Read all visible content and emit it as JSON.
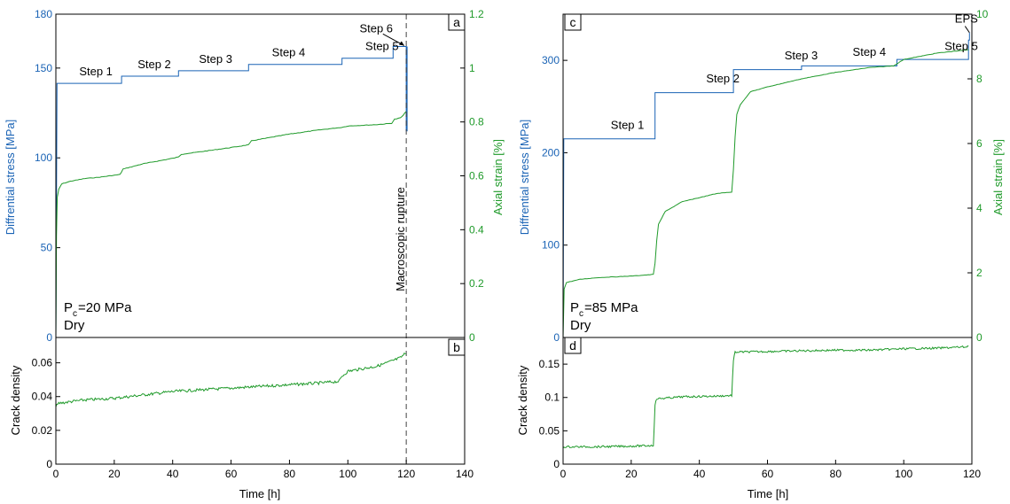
{
  "colors": {
    "stress": "#1a63b5",
    "strain": "#1f9a2a",
    "axis": "#000000",
    "rupture": "#444444"
  },
  "chart_data": [
    {
      "panel": "a",
      "type": "line",
      "xlim": [
        0,
        140
      ],
      "ylim_left": [
        0,
        180
      ],
      "ylim_right": [
        0,
        1.2
      ],
      "ylabel_left": "Diffrential stress [MPa]",
      "ylabel_right": "Axial strain [%]",
      "yticks_left": [
        "0",
        "50",
        "100",
        "150",
        "180"
      ],
      "yticks_right": [
        "0",
        "0.2",
        "0.4",
        "0.6",
        "0.8",
        "1",
        "1.2"
      ],
      "series": [
        {
          "axis": "left",
          "x": [
            0,
            0.4,
            22.5,
            22.5,
            42,
            42,
            66,
            66,
            98,
            98,
            115.5,
            115.5,
            120,
            120,
            120.3,
            120.3
          ],
          "y": [
            0,
            141.5,
            141.5,
            145.5,
            145.5,
            148.5,
            148.5,
            152,
            152,
            155.5,
            155.5,
            162,
            162,
            115,
            115,
            162
          ]
        },
        {
          "axis": "right",
          "x": [
            0,
            0.2,
            0.5,
            1,
            2,
            5,
            10,
            15,
            22,
            22.5,
            23,
            30,
            40,
            42,
            43,
            50,
            60,
            66,
            67,
            80,
            90,
            98,
            100,
            110,
            115,
            116,
            118,
            119,
            120
          ],
          "y": [
            0,
            0.38,
            0.52,
            0.55,
            0.57,
            0.58,
            0.59,
            0.595,
            0.605,
            0.615,
            0.625,
            0.645,
            0.665,
            0.67,
            0.68,
            0.69,
            0.705,
            0.715,
            0.73,
            0.755,
            0.77,
            0.78,
            0.785,
            0.79,
            0.795,
            0.81,
            0.815,
            0.825,
            0.84
          ]
        }
      ],
      "annotations": {
        "steps": [
          {
            "label": "Step 1",
            "x": 8,
            "y": 146
          },
          {
            "label": "Step 2",
            "x": 28,
            "y": 150
          },
          {
            "label": "Step 3",
            "x": 49,
            "y": 153
          },
          {
            "label": "Step 4",
            "x": 74,
            "y": 156.5
          },
          {
            "label": "Step 5",
            "x": 106,
            "y": 160
          },
          {
            "label": "Step 6",
            "x": 104,
            "y": 170
          }
        ],
        "rupture_label": "Macroscopic rupture",
        "rupture_x": 120,
        "conditions": [
          "P",
          "c",
          "=20 MPa",
          "Dry"
        ],
        "panel_label": "a"
      }
    },
    {
      "panel": "b",
      "type": "line",
      "xlim": [
        0,
        140
      ],
      "ylim": [
        0,
        0.075
      ],
      "xlabel": "Time [h]",
      "ylabel": "Crack density",
      "xticks": [
        "0",
        "20",
        "40",
        "60",
        "80",
        "100",
        "120",
        "140"
      ],
      "yticks": [
        "0",
        "0.02",
        "0.04",
        "0.06"
      ],
      "series": [
        {
          "x": [
            0,
            1,
            5,
            10,
            20,
            30,
            40,
            50,
            60,
            70,
            80,
            90,
            97,
            98,
            100,
            110,
            115,
            118,
            120
          ],
          "y": [
            0.034,
            0.036,
            0.037,
            0.038,
            0.039,
            0.041,
            0.043,
            0.044,
            0.045,
            0.046,
            0.047,
            0.048,
            0.049,
            0.052,
            0.055,
            0.058,
            0.061,
            0.063,
            0.066
          ]
        }
      ],
      "panel_label": "b"
    },
    {
      "panel": "c",
      "type": "line",
      "xlim": [
        0,
        120
      ],
      "ylim_left": [
        0,
        350
      ],
      "ylim_right": [
        0,
        10
      ],
      "ylabel_left": "Diffrential stress [MPa]",
      "ylabel_right": "Axial strain [%]",
      "yticks_left": [
        "0",
        "100",
        "200",
        "300"
      ],
      "yticks_right": [
        "0",
        "2",
        "4",
        "6",
        "8",
        "10"
      ],
      "series": [
        {
          "axis": "left",
          "x": [
            0,
            0.2,
            27,
            27,
            50,
            50,
            70,
            70,
            98,
            98,
            119,
            119,
            119.3,
            119.3
          ],
          "y": [
            0,
            215,
            215,
            265,
            265,
            290,
            290,
            294,
            294,
            301,
            301,
            322,
            322,
            330
          ]
        },
        {
          "axis": "right",
          "x": [
            0,
            0.3,
            1,
            5,
            10,
            20,
            26.5,
            27,
            27.5,
            28,
            30,
            35,
            45,
            49.5,
            50,
            50.5,
            51,
            52,
            55,
            60,
            70,
            80,
            90,
            97,
            100,
            110,
            119
          ],
          "y": [
            0,
            1.5,
            1.7,
            1.8,
            1.85,
            1.9,
            1.95,
            2.3,
            3.0,
            3.5,
            3.9,
            4.2,
            4.45,
            4.5,
            5.2,
            6.2,
            6.9,
            7.2,
            7.6,
            7.75,
            8.0,
            8.2,
            8.35,
            8.4,
            8.6,
            8.8,
            8.9
          ]
        }
      ],
      "annotations": {
        "steps": [
          {
            "label": "Step 1",
            "x": 14,
            "y": 226
          },
          {
            "label": "Step 2",
            "x": 42,
            "y": 276
          },
          {
            "label": "Step 3",
            "x": 65,
            "y": 301
          },
          {
            "label": "Step 4",
            "x": 85,
            "y": 305
          },
          {
            "label": "Step 5",
            "x": 112,
            "y": 311
          },
          {
            "label": "EPS",
            "x": 115,
            "y": 341
          }
        ],
        "conditions": [
          "P",
          "c",
          "=85 MPa",
          "Dry"
        ],
        "panel_label": "c"
      }
    },
    {
      "panel": "d",
      "type": "line",
      "xlim": [
        0,
        120
      ],
      "ylim": [
        0,
        0.19
      ],
      "xlabel": "Time [h]",
      "ylabel": "Crack density",
      "xticks": [
        "0",
        "20",
        "40",
        "60",
        "80",
        "100",
        "120"
      ],
      "yticks": [
        "0",
        "0.05",
        "0.1",
        "0.15"
      ],
      "series": [
        {
          "x": [
            0,
            0.5,
            10,
            20,
            26.5,
            27,
            27.5,
            35,
            45,
            49.5,
            50,
            50.5,
            60,
            70,
            80,
            90,
            100,
            110,
            118.5,
            119
          ],
          "y": [
            0.025,
            0.026,
            0.026,
            0.027,
            0.028,
            0.09,
            0.098,
            0.101,
            0.102,
            0.103,
            0.155,
            0.168,
            0.169,
            0.17,
            0.171,
            0.171,
            0.173,
            0.174,
            0.176,
            0.178
          ]
        }
      ],
      "panel_label": "d"
    }
  ]
}
